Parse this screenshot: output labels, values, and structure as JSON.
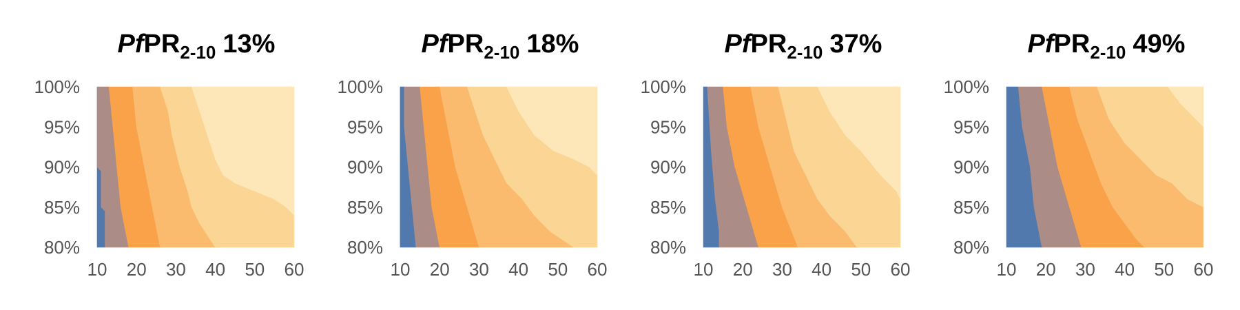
{
  "chart_data": [
    {
      "type": "heatmap",
      "title": {
        "prefix": "Pf",
        "main": "PR",
        "subscript": "2-10",
        "value": "13%"
      },
      "x_ticks": [
        "10",
        "20",
        "30",
        "40",
        "50",
        "60"
      ],
      "y_ticks": [
        "100%",
        "95%",
        "90%",
        "85%",
        "80%"
      ],
      "xlim": [
        10,
        60
      ],
      "ylim": [
        80,
        100
      ],
      "boundaries": [
        {
          "top": 10,
          "bottom": 12,
          "pts": [
            [
              100,
              10
            ],
            [
              90,
              10
            ],
            [
              89.5,
              11
            ],
            [
              85,
              11
            ],
            [
              84.5,
              12
            ],
            [
              80,
              12
            ]
          ]
        },
        {
          "top": 13,
          "bottom": 18,
          "pts": [
            [
              100,
              13
            ],
            [
              95,
              14
            ],
            [
              90,
              15
            ],
            [
              85,
              16
            ],
            [
              80,
              18
            ]
          ]
        },
        {
          "top": 19,
          "bottom": 26,
          "pts": [
            [
              100,
              19
            ],
            [
              95,
              20
            ],
            [
              90,
              22
            ],
            [
              85,
              24
            ],
            [
              80,
              26
            ]
          ]
        },
        {
          "top": 26,
          "bottom": 40,
          "pts": [
            [
              100,
              26
            ],
            [
              97,
              28
            ],
            [
              94,
              29
            ],
            [
              90,
              31
            ],
            [
              87,
              33
            ],
            [
              85,
              34
            ],
            [
              83,
              36
            ],
            [
              80,
              40
            ]
          ]
        },
        {
          "top": 34,
          "bottom": 60,
          "pts": [
            [
              100,
              34
            ],
            [
              97,
              36
            ],
            [
              94,
              38
            ],
            [
              91,
              40
            ],
            [
              89,
              42
            ],
            [
              88,
              45
            ],
            [
              87,
              50
            ],
            [
              86,
              55
            ],
            [
              85,
              58
            ],
            [
              84,
              60
            ]
          ]
        }
      ],
      "colors": [
        "#2e5a8a",
        "#5179ad",
        "#ab8c86",
        "#f9a24a",
        "#fabb6e",
        "#fbd594",
        "#fde6b8"
      ]
    },
    {
      "type": "heatmap",
      "title": {
        "prefix": "Pf",
        "main": "PR",
        "subscript": "2-10",
        "value": "18%"
      },
      "x_ticks": [
        "10",
        "20",
        "30",
        "40",
        "50",
        "60"
      ],
      "y_ticks": [
        "100%",
        "95%",
        "90%",
        "85%",
        "80%"
      ],
      "xlim": [
        10,
        60
      ],
      "ylim": [
        80,
        100
      ],
      "boundaries": [
        {
          "top": 9,
          "bottom": 9,
          "pts": [
            [
              100,
              9
            ],
            [
              80,
              9
            ]
          ]
        },
        {
          "top": 11,
          "bottom": 14,
          "pts": [
            [
              100,
              11
            ],
            [
              95,
              11
            ],
            [
              90,
              12
            ],
            [
              85,
              13
            ],
            [
              80,
              14
            ]
          ]
        },
        {
          "top": 15,
          "bottom": 20,
          "pts": [
            [
              100,
              15
            ],
            [
              95,
              16
            ],
            [
              90,
              17
            ],
            [
              85,
              18
            ],
            [
              80,
              20
            ]
          ]
        },
        {
          "top": 20,
          "bottom": 30,
          "pts": [
            [
              100,
              20
            ],
            [
              95,
              22
            ],
            [
              90,
              24
            ],
            [
              85,
              27
            ],
            [
              80,
              30
            ]
          ]
        },
        {
          "top": 27,
          "bottom": 54,
          "pts": [
            [
              100,
              27
            ],
            [
              97,
              29
            ],
            [
              94,
              31
            ],
            [
              91,
              34
            ],
            [
              88,
              37
            ],
            [
              86,
              41
            ],
            [
              84,
              44
            ],
            [
              82,
              48
            ],
            [
              81,
              51
            ],
            [
              80,
              54
            ]
          ]
        },
        {
          "top": 37,
          "bottom": 60,
          "pts": [
            [
              100,
              37
            ],
            [
              97,
              40
            ],
            [
              94,
              44
            ],
            [
              92,
              49
            ],
            [
              91,
              54
            ],
            [
              90,
              58
            ],
            [
              89,
              60
            ]
          ]
        }
      ],
      "colors": [
        "#2e5a8a",
        "#5179ad",
        "#ab8c86",
        "#f9a24a",
        "#fabb6e",
        "#fbd594",
        "#fde6b8"
      ]
    },
    {
      "type": "heatmap",
      "title": {
        "prefix": "Pf",
        "main": "PR",
        "subscript": "2-10",
        "value": "37%"
      },
      "x_ticks": [
        "10",
        "20",
        "30",
        "40",
        "50",
        "60"
      ],
      "y_ticks": [
        "100%",
        "95%",
        "90%",
        "85%",
        "80%"
      ],
      "xlim": [
        10,
        60
      ],
      "ylim": [
        80,
        100
      ],
      "boundaries": [
        {
          "top": 11,
          "bottom": 14,
          "pts": [
            [
              100,
              11
            ],
            [
              92,
              12
            ],
            [
              86,
              13
            ],
            [
              82,
              14
            ],
            [
              80,
              14
            ]
          ]
        },
        {
          "top": 15,
          "bottom": 24,
          "pts": [
            [
              100,
              15
            ],
            [
              95,
              16
            ],
            [
              90,
              18
            ],
            [
              85,
              21
            ],
            [
              80,
              24
            ]
          ]
        },
        {
          "top": 22,
          "bottom": 34,
          "pts": [
            [
              100,
              22
            ],
            [
              95,
              24
            ],
            [
              90,
              27
            ],
            [
              85,
              30
            ],
            [
              80,
              34
            ]
          ]
        },
        {
          "top": 29,
          "bottom": 49,
          "pts": [
            [
              100,
              29
            ],
            [
              96,
              31
            ],
            [
              92,
              33
            ],
            [
              89,
              36
            ],
            [
              86,
              39
            ],
            [
              84,
              42
            ],
            [
              82,
              46
            ],
            [
              80,
              49
            ]
          ]
        },
        {
          "top": 39,
          "bottom": 60,
          "pts": [
            [
              100,
              39
            ],
            [
              97,
              42
            ],
            [
              94,
              46
            ],
            [
              92,
              50
            ],
            [
              89,
              55
            ],
            [
              87,
              59
            ],
            [
              86,
              60
            ]
          ]
        }
      ],
      "colors": [
        "#2e5a8a",
        "#5179ad",
        "#ab8c86",
        "#f9a24a",
        "#fabb6e",
        "#fbd594",
        "#fde6b8"
      ]
    },
    {
      "type": "heatmap",
      "title": {
        "prefix": "Pf",
        "main": "PR",
        "subscript": "2-10",
        "value": "49%"
      },
      "x_ticks": [
        "10",
        "20",
        "30",
        "40",
        "50",
        "60"
      ],
      "y_ticks": [
        "100%",
        "95%",
        "90%",
        "85%",
        "80%"
      ],
      "xlim": [
        10,
        60
      ],
      "ylim": [
        80,
        100
      ],
      "boundaries": [
        {
          "top": 13,
          "bottom": 19,
          "pts": [
            [
              100,
              13
            ],
            [
              95,
              14
            ],
            [
              90,
              16
            ],
            [
              85,
              17
            ],
            [
              80,
              19
            ]
          ]
        },
        {
          "top": 19,
          "bottom": 29,
          "pts": [
            [
              100,
              19
            ],
            [
              95,
              21
            ],
            [
              90,
              23
            ],
            [
              85,
              26
            ],
            [
              80,
              29
            ]
          ]
        },
        {
          "top": 26,
          "bottom": 45,
          "pts": [
            [
              100,
              26
            ],
            [
              96,
              28
            ],
            [
              92,
              31
            ],
            [
              88,
              34
            ],
            [
              85,
              37
            ],
            [
              83,
              40
            ],
            [
              81,
              43
            ],
            [
              80,
              45
            ]
          ]
        },
        {
          "top": 33,
          "bottom": 60,
          "pts": [
            [
              100,
              33
            ],
            [
              96,
              36
            ],
            [
              93,
              40
            ],
            [
              91,
              44
            ],
            [
              89,
              48
            ],
            [
              88,
              52
            ],
            [
              86,
              56
            ],
            [
              85,
              60
            ]
          ]
        },
        {
          "top": 51,
          "bottom": 60,
          "pts": [
            [
              100,
              51
            ],
            [
              98,
              54
            ],
            [
              96,
              58
            ],
            [
              95,
              60
            ]
          ]
        }
      ],
      "colors": [
        "#2e5a8a",
        "#5179ad",
        "#ab8c86",
        "#f9a24a",
        "#fabb6e",
        "#fbd594",
        "#fde6b8"
      ]
    }
  ]
}
